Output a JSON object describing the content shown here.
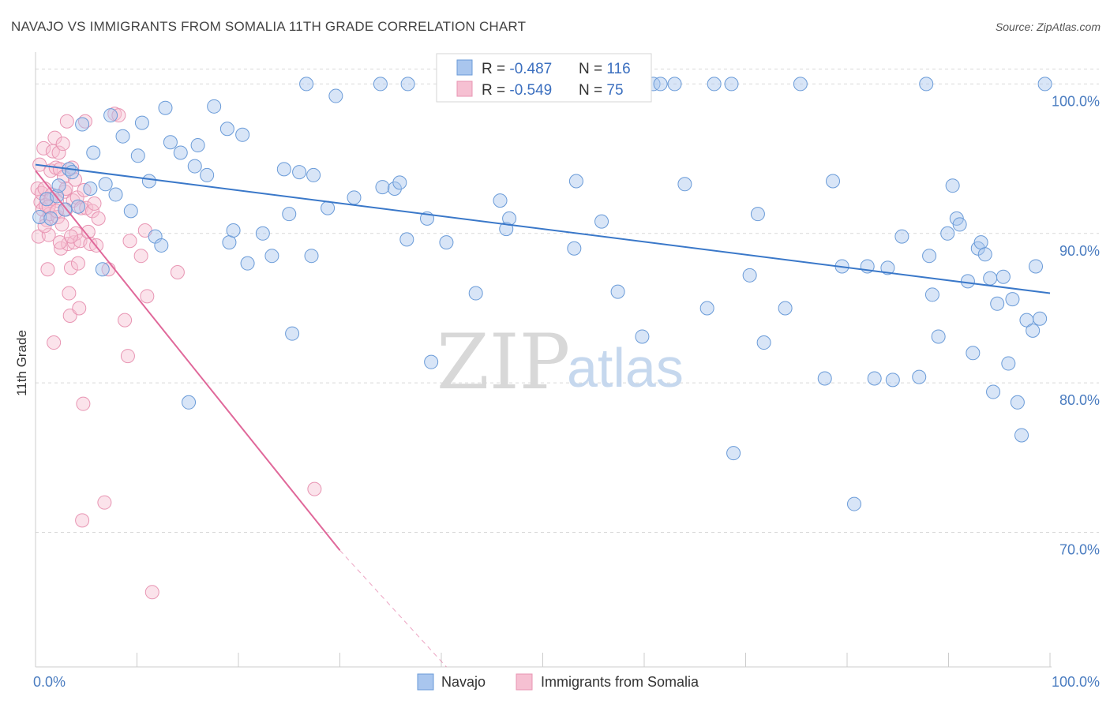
{
  "title": "NAVAJO VS IMMIGRANTS FROM SOMALIA 11TH GRADE CORRELATION CHART",
  "source": "Source: ZipAtlas.com",
  "watermark": {
    "zip": "ZIP",
    "atlas": "atlas"
  },
  "colors": {
    "navajo_fill": "#a9c6ee",
    "navajo_stroke": "#6a9bd8",
    "navajo_line": "#3a78c9",
    "somalia_fill": "#f6c0d2",
    "somalia_stroke": "#e895b3",
    "somalia_line": "#e0689a",
    "grid": "#d9d9d9",
    "axis_text": "#4a7cc0"
  },
  "legend_box": {
    "rows": [
      {
        "r_label": "R = ",
        "r_value": "-0.487",
        "n_label": "N = ",
        "n_value": "116"
      },
      {
        "r_label": "R = ",
        "r_value": "-0.549",
        "n_label": "N = ",
        "n_value": "75"
      }
    ]
  },
  "bottom_legend": {
    "navajo": "Navajo",
    "somalia": "Immigrants from Somalia"
  },
  "chart_data": {
    "type": "scatter",
    "title": "NAVAJO VS IMMIGRANTS FROM SOMALIA 11TH GRADE CORRELATION CHART",
    "xlabel": "",
    "ylabel": "11th Grade",
    "xlim": [
      0,
      100
    ],
    "ylim": [
      61,
      101.5
    ],
    "x_tick_labels": [
      "0.0%",
      "100.0%"
    ],
    "y_ticks": [
      70,
      80,
      90,
      100
    ],
    "y_tick_labels": [
      "70.0%",
      "80.0%",
      "90.0%",
      "100.0%"
    ],
    "grid": true,
    "series": [
      {
        "name": "Navajo",
        "color": "#a9c6ee",
        "trend": {
          "x": [
            0,
            100
          ],
          "y": [
            94.6,
            86.0
          ]
        },
        "points": [
          [
            0.4,
            91.1
          ],
          [
            1.1,
            92.3
          ],
          [
            1.5,
            91.0
          ],
          [
            2.1,
            92.5
          ],
          [
            2.3,
            93.2
          ],
          [
            2.9,
            91.6
          ],
          [
            3.3,
            94.3
          ],
          [
            3.6,
            94.1
          ],
          [
            4.2,
            91.8
          ],
          [
            4.6,
            97.3
          ],
          [
            5.4,
            93.0
          ],
          [
            5.7,
            95.4
          ],
          [
            6.6,
            87.6
          ],
          [
            6.9,
            93.3
          ],
          [
            7.4,
            97.9
          ],
          [
            7.9,
            92.6
          ],
          [
            8.6,
            96.5
          ],
          [
            9.4,
            91.5
          ],
          [
            10.1,
            95.2
          ],
          [
            10.5,
            97.4
          ],
          [
            11.2,
            93.5
          ],
          [
            11.8,
            89.8
          ],
          [
            12.4,
            89.2
          ],
          [
            12.8,
            98.4
          ],
          [
            13.3,
            96.1
          ],
          [
            14.3,
            95.4
          ],
          [
            15.1,
            78.7
          ],
          [
            15.7,
            94.5
          ],
          [
            16.0,
            95.9
          ],
          [
            16.9,
            93.9
          ],
          [
            17.6,
            98.5
          ],
          [
            18.9,
            97.0
          ],
          [
            19.1,
            89.4
          ],
          [
            19.5,
            90.2
          ],
          [
            20.4,
            96.6
          ],
          [
            20.9,
            88.0
          ],
          [
            22.4,
            90.0
          ],
          [
            23.3,
            88.5
          ],
          [
            24.5,
            94.3
          ],
          [
            25.0,
            91.3
          ],
          [
            25.3,
            83.3
          ],
          [
            26.0,
            94.1
          ],
          [
            26.7,
            100.0
          ],
          [
            27.2,
            88.5
          ],
          [
            27.4,
            93.9
          ],
          [
            29.6,
            99.2
          ],
          [
            28.8,
            91.7
          ],
          [
            31.4,
            92.4
          ],
          [
            34.0,
            100.0
          ],
          [
            34.2,
            93.1
          ],
          [
            35.4,
            93.0
          ],
          [
            35.9,
            93.4
          ],
          [
            36.6,
            89.6
          ],
          [
            36.7,
            100.0
          ],
          [
            38.6,
            91.0
          ],
          [
            39.0,
            81.4
          ],
          [
            40.5,
            89.4
          ],
          [
            43.4,
            86.0
          ],
          [
            45.8,
            92.2
          ],
          [
            46.4,
            90.3
          ],
          [
            46.7,
            91.0
          ],
          [
            52.4,
            100.0
          ],
          [
            53.1,
            89.0
          ],
          [
            53.3,
            93.5
          ],
          [
            55.8,
            90.8
          ],
          [
            57.4,
            86.1
          ],
          [
            59.8,
            83.1
          ],
          [
            60.9,
            100.0
          ],
          [
            61.6,
            100.0
          ],
          [
            63.0,
            100.0
          ],
          [
            64.0,
            93.3
          ],
          [
            66.2,
            85.0
          ],
          [
            66.9,
            100.0
          ],
          [
            68.6,
            100.0
          ],
          [
            68.8,
            75.3
          ],
          [
            70.4,
            87.2
          ],
          [
            71.2,
            91.3
          ],
          [
            71.8,
            82.7
          ],
          [
            73.9,
            85.0
          ],
          [
            75.4,
            100.0
          ],
          [
            77.8,
            80.3
          ],
          [
            78.6,
            93.5
          ],
          [
            79.5,
            87.8
          ],
          [
            80.7,
            71.9
          ],
          [
            82.0,
            87.8
          ],
          [
            82.7,
            80.3
          ],
          [
            84.0,
            87.7
          ],
          [
            84.5,
            80.2
          ],
          [
            85.4,
            89.8
          ],
          [
            87.1,
            80.4
          ],
          [
            87.8,
            100.0
          ],
          [
            88.1,
            88.5
          ],
          [
            88.4,
            85.9
          ],
          [
            89.0,
            83.1
          ],
          [
            89.9,
            90.0
          ],
          [
            90.4,
            93.2
          ],
          [
            90.8,
            91.0
          ],
          [
            91.1,
            90.6
          ],
          [
            91.9,
            86.8
          ],
          [
            92.4,
            82.0
          ],
          [
            92.9,
            89.0
          ],
          [
            93.2,
            89.4
          ],
          [
            93.6,
            88.6
          ],
          [
            94.1,
            87.0
          ],
          [
            94.4,
            79.4
          ],
          [
            94.8,
            85.3
          ],
          [
            95.4,
            87.1
          ],
          [
            95.9,
            81.3
          ],
          [
            96.3,
            85.6
          ],
          [
            96.8,
            78.7
          ],
          [
            97.2,
            76.5
          ],
          [
            97.7,
            84.2
          ],
          [
            98.3,
            83.5
          ],
          [
            98.6,
            87.8
          ],
          [
            99.0,
            84.3
          ],
          [
            99.5,
            100.0
          ]
        ]
      },
      {
        "name": "Immigrants from Somalia",
        "color": "#f6c0d2",
        "trend": {
          "x": [
            0,
            30
          ],
          "y": [
            94.2,
            68.8
          ]
        },
        "trend_dashed_to": {
          "x": 40.5,
          "y": 61.0
        },
        "points": [
          [
            0.2,
            93.0
          ],
          [
            0.3,
            89.8
          ],
          [
            0.4,
            94.6
          ],
          [
            0.5,
            92.1
          ],
          [
            0.6,
            92.7
          ],
          [
            0.7,
            91.6
          ],
          [
            0.8,
            95.7
          ],
          [
            0.9,
            93.0
          ],
          [
            1.0,
            91.9
          ],
          [
            1.1,
            90.9
          ],
          [
            1.2,
            87.6
          ],
          [
            1.3,
            89.9
          ],
          [
            1.4,
            91.3
          ],
          [
            1.5,
            94.2
          ],
          [
            1.6,
            92.6
          ],
          [
            1.7,
            95.5
          ],
          [
            1.8,
            82.7
          ],
          [
            1.9,
            96.4
          ],
          [
            2.0,
            94.4
          ],
          [
            2.1,
            92.2
          ],
          [
            2.2,
            91.1
          ],
          [
            2.3,
            95.4
          ],
          [
            2.4,
            94.3
          ],
          [
            2.5,
            89.0
          ],
          [
            2.6,
            90.6
          ],
          [
            2.7,
            96.0
          ],
          [
            2.8,
            93.8
          ],
          [
            2.9,
            92.8
          ],
          [
            3.0,
            91.6
          ],
          [
            3.1,
            97.5
          ],
          [
            3.2,
            89.3
          ],
          [
            3.3,
            86.0
          ],
          [
            3.4,
            84.5
          ],
          [
            3.5,
            87.7
          ],
          [
            3.6,
            94.4
          ],
          [
            3.7,
            92.2
          ],
          [
            3.8,
            89.4
          ],
          [
            3.9,
            93.6
          ],
          [
            4.0,
            90.0
          ],
          [
            4.1,
            92.4
          ],
          [
            4.2,
            88.0
          ],
          [
            4.3,
            85.0
          ],
          [
            4.4,
            89.5
          ],
          [
            4.5,
            91.7
          ],
          [
            4.6,
            70.8
          ],
          [
            4.7,
            78.6
          ],
          [
            4.8,
            92.9
          ],
          [
            4.9,
            97.5
          ],
          [
            5.0,
            91.7
          ],
          [
            5.2,
            90.1
          ],
          [
            5.4,
            89.3
          ],
          [
            5.6,
            91.5
          ],
          [
            5.8,
            92.0
          ],
          [
            6.0,
            89.2
          ],
          [
            6.2,
            91.0
          ],
          [
            6.8,
            72.0
          ],
          [
            7.2,
            87.6
          ],
          [
            7.8,
            98.0
          ],
          [
            8.2,
            97.9
          ],
          [
            8.8,
            84.2
          ],
          [
            9.1,
            81.8
          ],
          [
            9.3,
            89.5
          ],
          [
            10.4,
            88.5
          ],
          [
            10.8,
            90.2
          ],
          [
            11.0,
            85.8
          ],
          [
            11.5,
            66.0
          ],
          [
            14.0,
            87.4
          ],
          [
            27.5,
            72.9
          ],
          [
            1.5,
            92.3
          ],
          [
            2.4,
            89.4
          ],
          [
            3.0,
            93.0
          ],
          [
            0.9,
            90.5
          ],
          [
            1.3,
            91.8
          ],
          [
            2.1,
            91.5
          ],
          [
            3.5,
            89.8
          ]
        ]
      }
    ]
  }
}
